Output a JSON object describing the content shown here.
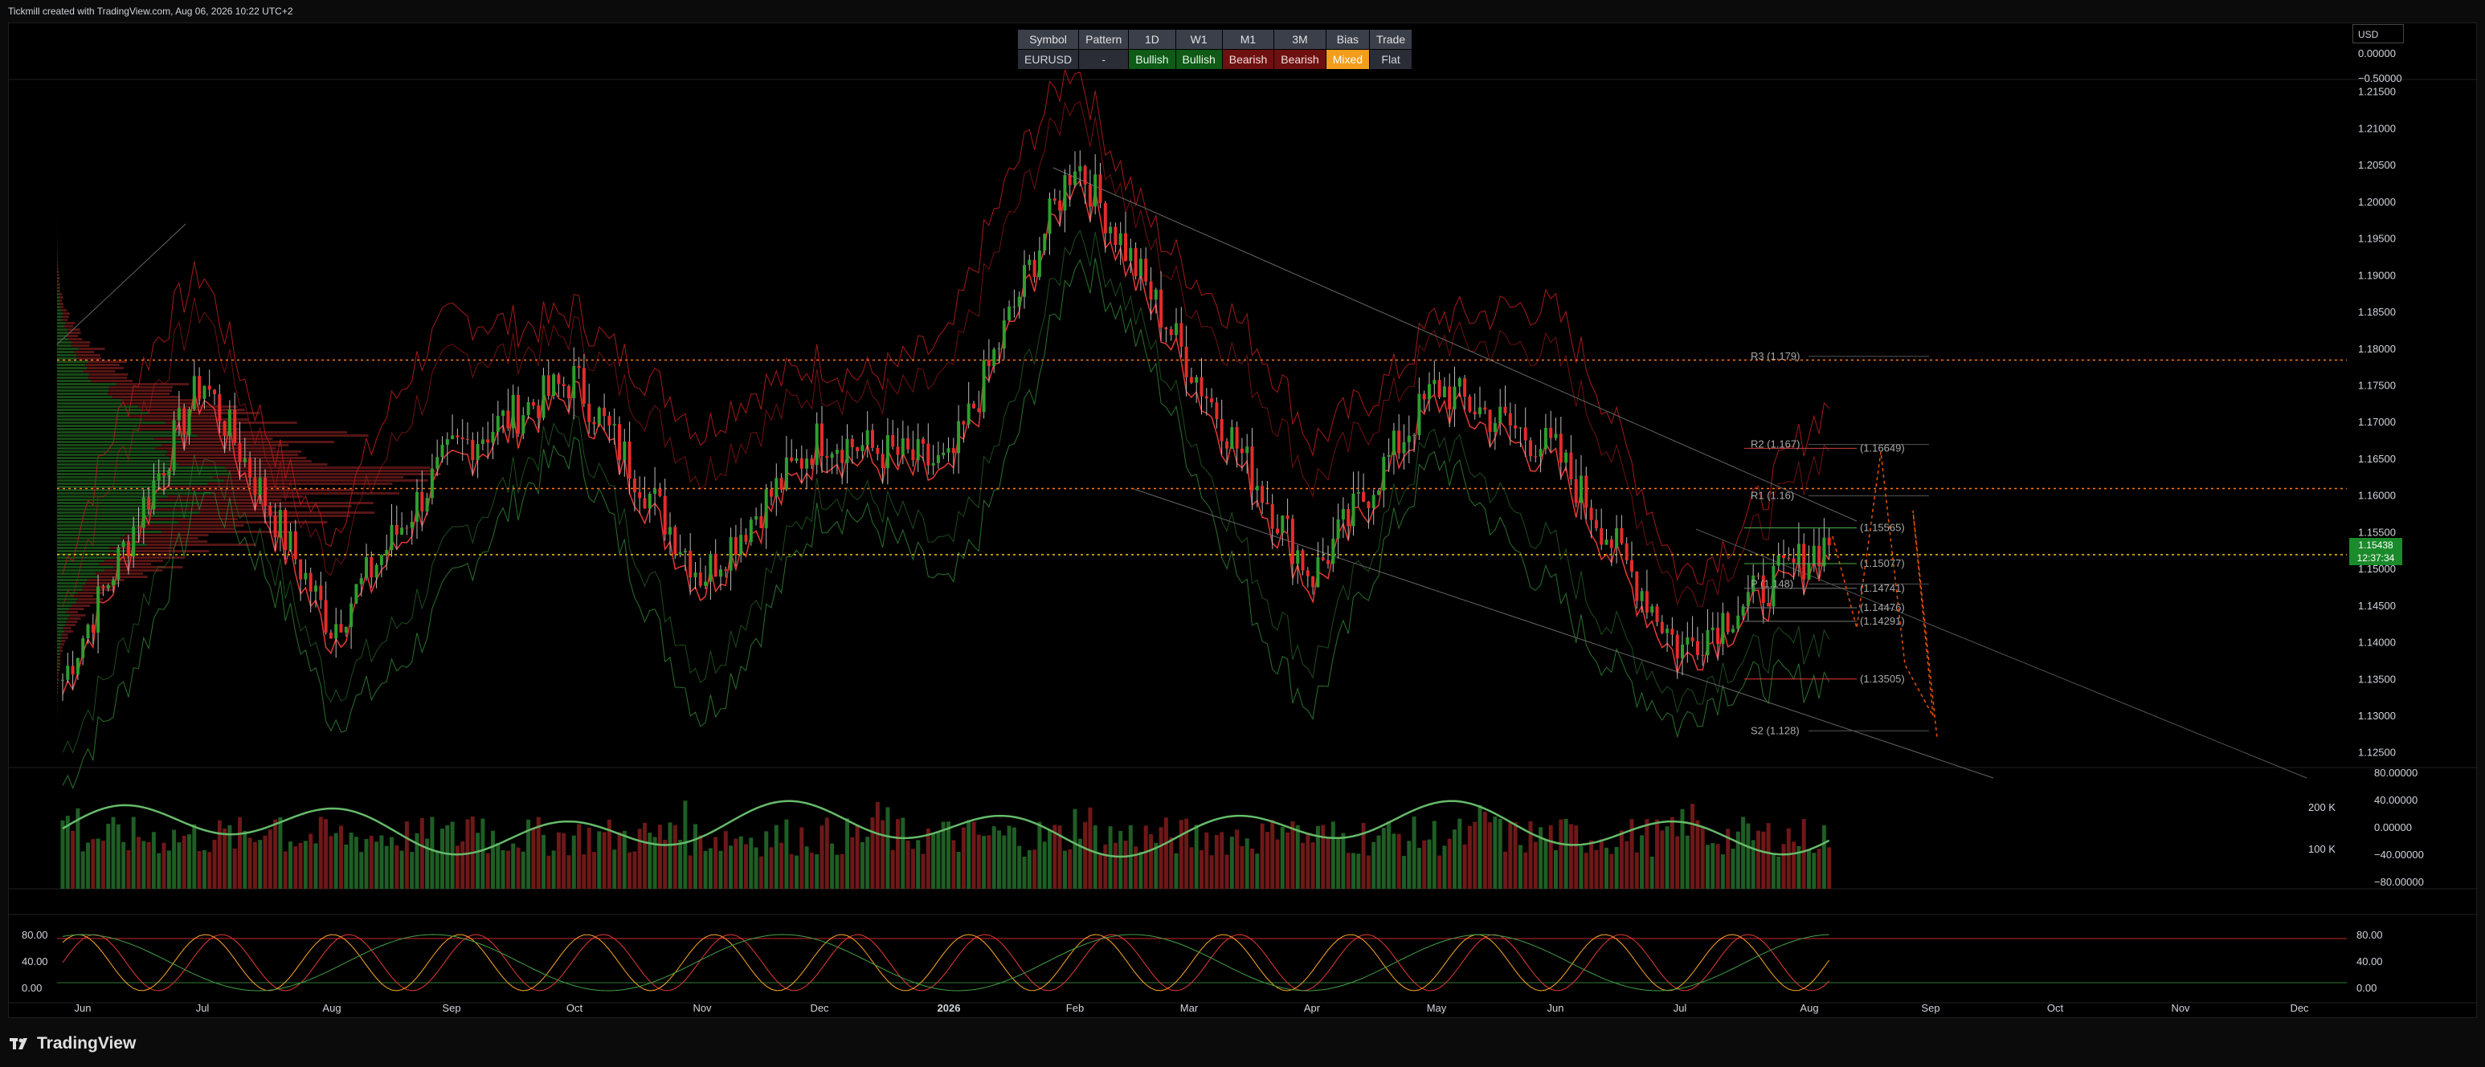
{
  "caption": "Tickmill created with TradingView.com, Aug 06, 2026 10:22 UTC+2",
  "brand": "TradingView",
  "currency": "USD",
  "status_table": {
    "headers": [
      "Symbol",
      "Pattern",
      "1D",
      "W1",
      "M1",
      "3M",
      "Bias",
      "Trade"
    ],
    "values": [
      "EURUSD",
      "-",
      "Bullish",
      "Bullish",
      "Bearish",
      "Bearish",
      "Mixed",
      "Flat"
    ],
    "colors": [
      "neutral",
      "neutral",
      "bull",
      "bull",
      "bear",
      "bear",
      "mixed",
      "neutral"
    ]
  },
  "price_badge": {
    "price": "1.15438",
    "countdown": "12:37:34"
  },
  "pivots": [
    {
      "label": "R3 (1.179)",
      "value": 1.179
    },
    {
      "label": "R2 (1.167)",
      "value": 1.167
    },
    {
      "label": "R1 (1.16)",
      "value": 1.16
    },
    {
      "label": "P (1.148)",
      "value": 1.148
    },
    {
      "label": "S2 (1.128)",
      "value": 1.128
    }
  ],
  "level_labels": [
    {
      "label": "(1.16649)",
      "value": 1.16649,
      "color": "#c94040"
    },
    {
      "label": "(1.15565)",
      "value": 1.15565,
      "color": "#4caf50"
    },
    {
      "label": "(1.15077)",
      "value": 1.15077,
      "color": "#4caf50"
    },
    {
      "label": "(1.14741)",
      "value": 1.14741,
      "color": "#777777"
    },
    {
      "label": "(1.14476)",
      "value": 1.14476,
      "color": "#777777"
    },
    {
      "label": "(1.14291)",
      "value": 1.14291,
      "color": "#777777"
    },
    {
      "label": "(1.13505)",
      "value": 1.13505,
      "color": "#e53935"
    }
  ],
  "chart_data": {
    "type": "line",
    "symbol": "EURUSD",
    "price_axis": {
      "ticks": [
        "1.21500",
        "1.21000",
        "1.20500",
        "1.20000",
        "1.19500",
        "1.19000",
        "1.18500",
        "1.18000",
        "1.17500",
        "1.17000",
        "1.16500",
        "1.16000",
        "1.15500",
        "1.15000",
        "1.14500",
        "1.14000",
        "1.13500",
        "1.13000",
        "1.12500"
      ],
      "ylim": [
        1.123,
        1.22
      ]
    },
    "top_axis_ticks": [
      "0.00000",
      "−0.50000"
    ],
    "time_axis": [
      "Jun",
      "Jul",
      "Aug",
      "Sep",
      "Oct",
      "Nov",
      "Dec",
      "2026",
      "Feb",
      "Mar",
      "Apr",
      "May",
      "Jun",
      "Jul",
      "Aug",
      "Sep",
      "Oct",
      "Nov",
      "Dec"
    ],
    "bold_time_label": "2026",
    "horizontal_levels": [
      1.1785,
      1.161,
      1.152
    ],
    "close_series": {
      "x": [
        "Jun",
        "Jul",
        "Aug",
        "Sep",
        "Oct",
        "Nov",
        "Dec",
        "2026",
        "Feb",
        "Mar",
        "Apr",
        "May",
        "Jun",
        "Jul",
        "Aug"
      ],
      "values": [
        1.135,
        1.176,
        1.142,
        1.166,
        1.176,
        1.149,
        1.168,
        1.164,
        1.206,
        1.178,
        1.149,
        1.175,
        1.166,
        1.139,
        1.1544
      ]
    },
    "volume_panel": {
      "ticks": [
        "80.00000",
        "40.00000",
        "0.00000",
        "−40.00000",
        "−80.00000"
      ],
      "volume_ticks": [
        "200 K",
        "100 K"
      ]
    },
    "oscillator_panel": {
      "ticks": [
        "80.00",
        "40.00",
        "0.00"
      ]
    },
    "grid": false,
    "colors": {
      "up": "#26a69a",
      "bull": "#2e7d32",
      "bear": "#d32f2f",
      "background": "#000000"
    }
  }
}
